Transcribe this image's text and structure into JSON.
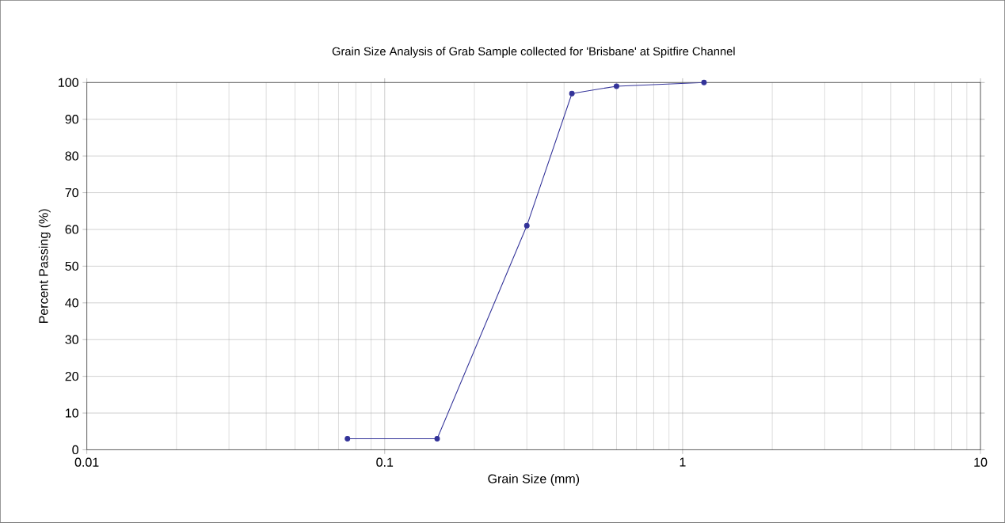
{
  "chart_data": {
    "type": "line",
    "title": "Grain Size Analysis of Grab Sample collected for 'Brisbane' at Spitfire Channel",
    "xlabel": "Grain Size (mm)",
    "ylabel": "Percent Passing (%)",
    "x": [
      0.075,
      0.15,
      0.3,
      0.425,
      0.6,
      1.18
    ],
    "series": [
      {
        "color": "#333399",
        "values": [
          3,
          3,
          61,
          97,
          99,
          100
        ]
      }
    ],
    "log": "x",
    "xlim": [
      0.01,
      10
    ],
    "xticks": [
      0.01,
      0.1,
      1,
      10
    ],
    "ylim": [
      0,
      100
    ],
    "yticks": [
      0,
      10,
      20,
      30,
      40,
      50,
      60,
      70,
      80,
      90,
      100
    ],
    "grid": true,
    "marker": "circle",
    "line_style": "solid"
  }
}
